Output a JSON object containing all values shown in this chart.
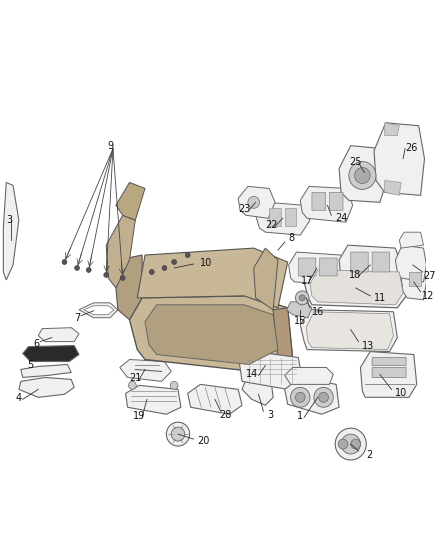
{
  "bg_color": "#ffffff",
  "fig_width": 4.38,
  "fig_height": 5.33,
  "dpi": 100,
  "line_color": "#333333",
  "label_color": "#111111",
  "label_fontsize": 7.0,
  "parts_color": "#666666",
  "fill_light": "#f0f0f0",
  "fill_med": "#cccccc",
  "fill_dark": "#444444",
  "fill_tan": "#c8b898",
  "fill_tan2": "#b0a080"
}
